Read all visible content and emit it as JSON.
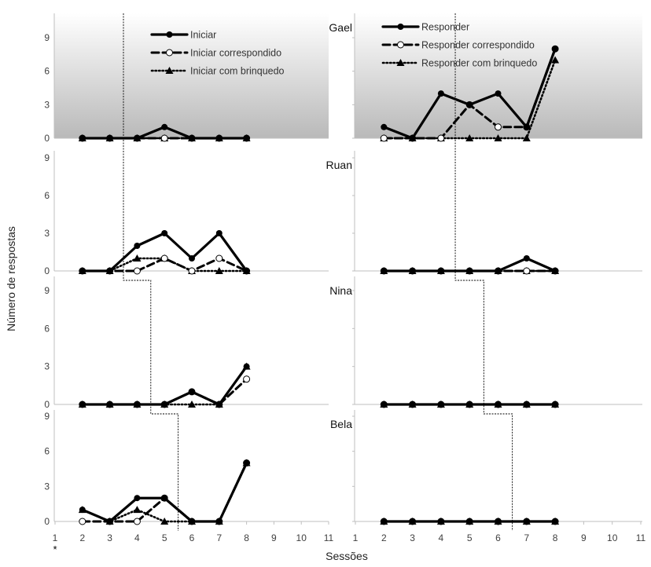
{
  "chart_data": {
    "type": "line",
    "ylabel": "Número de respostas",
    "xlabel": "Sessões",
    "footnote": "*",
    "x_ticks": [
      "1",
      "2",
      "3",
      "4",
      "5",
      "6",
      "7",
      "8",
      "9",
      "10",
      "11"
    ],
    "y_ticks": [
      "0",
      "3",
      "6",
      "9"
    ],
    "xlim": [
      1,
      11
    ],
    "ylim": [
      0,
      9
    ],
    "shaded_panels": "top row (Gael) has gray gradient background",
    "columns": [
      {
        "key": "iniciar",
        "legend": [
          "Iniciar",
          "Iniciar correspondido",
          "Iniciar com brinquedo"
        ]
      },
      {
        "key": "responder",
        "legend": [
          "Responder",
          "Responder correspondido",
          "Responder com brinquedo"
        ]
      }
    ],
    "participants": [
      {
        "name": "Gael",
        "iniciar": {
          "x": [
            2,
            3,
            4,
            5,
            6,
            7,
            8
          ],
          "total": [
            0,
            0,
            0,
            1,
            0,
            0,
            0
          ],
          "correspondido": [
            0,
            0,
            0,
            0,
            0,
            0,
            0
          ],
          "brinquedo": [
            0,
            0,
            0,
            0,
            0,
            0,
            0
          ]
        },
        "responder": {
          "x": [
            2,
            3,
            4,
            5,
            6,
            7,
            8
          ],
          "total": [
            1,
            0,
            4,
            3,
            4,
            1,
            8
          ],
          "correspondido": [
            0,
            0,
            0,
            3,
            1,
            1,
            8
          ],
          "brinquedo": [
            0,
            0,
            0,
            0,
            0,
            0,
            7
          ]
        }
      },
      {
        "name": "Ruan",
        "iniciar": {
          "x": [
            2,
            3,
            4,
            5,
            6,
            7,
            8
          ],
          "total": [
            0,
            0,
            2,
            3,
            1,
            3,
            0
          ],
          "correspondido": [
            0,
            0,
            0,
            1,
            0,
            1,
            0
          ],
          "brinquedo": [
            0,
            0,
            1,
            1,
            0,
            0,
            0
          ]
        },
        "responder": {
          "x": [
            2,
            3,
            4,
            5,
            6,
            7,
            8
          ],
          "total": [
            0,
            0,
            0,
            0,
            0,
            1,
            0
          ],
          "correspondido": [
            0,
            0,
            0,
            0,
            0,
            0,
            0
          ],
          "brinquedo": [
            0,
            0,
            0,
            0,
            0,
            0,
            0
          ]
        }
      },
      {
        "name": "Nina",
        "iniciar": {
          "x": [
            2,
            3,
            4,
            5,
            6,
            7,
            8
          ],
          "total": [
            0,
            0,
            0,
            0,
            1,
            0,
            3
          ],
          "correspondido": [
            0,
            0,
            0,
            0,
            1,
            0,
            2
          ],
          "brinquedo": [
            0,
            0,
            0,
            0,
            0,
            0,
            3
          ]
        },
        "responder": {
          "x": [
            2,
            3,
            4,
            5,
            6,
            7,
            8
          ],
          "total": [
            0,
            0,
            0,
            0,
            0,
            0,
            0
          ],
          "correspondido": [
            0,
            0,
            0,
            0,
            0,
            0,
            0
          ],
          "brinquedo": [
            0,
            0,
            0,
            0,
            0,
            0,
            0
          ]
        }
      },
      {
        "name": "Bela",
        "iniciar": {
          "x": [
            2,
            3,
            4,
            5,
            6,
            7,
            8
          ],
          "total": [
            1,
            0,
            2,
            2,
            0,
            0,
            5
          ],
          "correspondido": [
            0,
            0,
            0,
            2,
            0,
            0,
            5
          ],
          "brinquedo": [
            1,
            0,
            1,
            0,
            0,
            0,
            5
          ]
        },
        "responder": {
          "x": [
            2,
            3,
            4,
            5,
            6,
            7,
            8
          ],
          "total": [
            0,
            0,
            0,
            0,
            0,
            0,
            0
          ],
          "correspondido": [
            0,
            0,
            0,
            0,
            0,
            0,
            0
          ],
          "brinquedo": [
            0,
            0,
            0,
            0,
            0,
            0,
            0
          ]
        }
      }
    ],
    "phase_change_lines": {
      "iniciar": [
        3.5,
        4.5,
        5.5
      ],
      "responder": [
        4.5,
        5.5,
        6.5
      ]
    }
  }
}
